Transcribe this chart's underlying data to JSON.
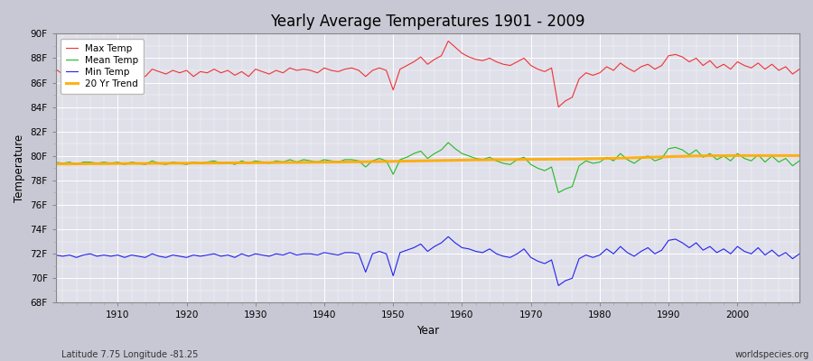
{
  "title": "Yearly Average Temperatures 1901 - 2009",
  "xlabel": "Year",
  "ylabel": "Temperature",
  "subtitle_left": "Latitude 7.75 Longitude -81.25",
  "subtitle_right": "worldspecies.org",
  "fig_bg_color": "#d0d0d8",
  "plot_bg_color": "#e4e4ec",
  "ylim": [
    68,
    90
  ],
  "yticks": [
    68,
    70,
    72,
    74,
    76,
    78,
    80,
    82,
    84,
    86,
    88,
    90
  ],
  "ytick_labels": [
    "68F",
    "70F",
    "72F",
    "74F",
    "76F",
    "78F",
    "80F",
    "82F",
    "84F",
    "86F",
    "88F",
    "90F"
  ],
  "xlim": [
    1901,
    2009
  ],
  "xticks": [
    1910,
    1920,
    1930,
    1940,
    1950,
    1960,
    1970,
    1980,
    1990,
    2000
  ],
  "line_colors": {
    "max": "#ee3333",
    "mean": "#22bb22",
    "min": "#2222ee",
    "trend": "#ffaa00"
  },
  "legend_labels": [
    "Max Temp",
    "Mean Temp",
    "Min Temp",
    "20 Yr Trend"
  ],
  "years": [
    1901,
    1902,
    1903,
    1904,
    1905,
    1906,
    1907,
    1908,
    1909,
    1910,
    1911,
    1912,
    1913,
    1914,
    1915,
    1916,
    1917,
    1918,
    1919,
    1920,
    1921,
    1922,
    1923,
    1924,
    1925,
    1926,
    1927,
    1928,
    1929,
    1930,
    1931,
    1932,
    1933,
    1934,
    1935,
    1936,
    1937,
    1938,
    1939,
    1940,
    1941,
    1942,
    1943,
    1944,
    1945,
    1946,
    1947,
    1948,
    1949,
    1950,
    1951,
    1952,
    1953,
    1954,
    1955,
    1956,
    1957,
    1958,
    1959,
    1960,
    1961,
    1962,
    1963,
    1964,
    1965,
    1966,
    1967,
    1968,
    1969,
    1970,
    1971,
    1972,
    1973,
    1974,
    1975,
    1976,
    1977,
    1978,
    1979,
    1980,
    1981,
    1982,
    1983,
    1984,
    1985,
    1986,
    1987,
    1988,
    1989,
    1990,
    1991,
    1992,
    1993,
    1994,
    1995,
    1996,
    1997,
    1998,
    1999,
    2000,
    2001,
    2002,
    2003,
    2004,
    2005,
    2006,
    2007,
    2008,
    2009
  ],
  "max_temp": [
    87.1,
    86.7,
    86.9,
    86.5,
    86.8,
    87.1,
    86.8,
    87.0,
    86.7,
    87.2,
    86.6,
    86.9,
    86.7,
    86.5,
    87.1,
    86.9,
    86.7,
    87.0,
    86.8,
    87.0,
    86.5,
    86.9,
    86.8,
    87.1,
    86.8,
    87.0,
    86.6,
    86.9,
    86.5,
    87.1,
    86.9,
    86.7,
    87.0,
    86.8,
    87.2,
    87.0,
    87.1,
    87.0,
    86.8,
    87.2,
    87.0,
    86.9,
    87.1,
    87.2,
    87.0,
    86.5,
    87.0,
    87.2,
    87.0,
    85.4,
    87.1,
    87.4,
    87.7,
    88.1,
    87.5,
    87.9,
    88.2,
    89.4,
    88.9,
    88.4,
    88.1,
    87.9,
    87.8,
    88.0,
    87.7,
    87.5,
    87.4,
    87.7,
    88.0,
    87.4,
    87.1,
    86.9,
    87.2,
    84.0,
    84.5,
    84.8,
    86.3,
    86.8,
    86.6,
    86.8,
    87.3,
    87.0,
    87.6,
    87.2,
    86.9,
    87.3,
    87.5,
    87.1,
    87.4,
    88.2,
    88.3,
    88.1,
    87.7,
    88.0,
    87.4,
    87.8,
    87.2,
    87.5,
    87.1,
    87.7,
    87.4,
    87.2,
    87.6,
    87.1,
    87.5,
    87.0,
    87.3,
    86.7,
    87.1
  ],
  "mean_temp": [
    79.5,
    79.4,
    79.5,
    79.3,
    79.5,
    79.5,
    79.4,
    79.5,
    79.4,
    79.5,
    79.3,
    79.5,
    79.4,
    79.3,
    79.6,
    79.4,
    79.3,
    79.5,
    79.4,
    79.3,
    79.5,
    79.4,
    79.5,
    79.6,
    79.4,
    79.5,
    79.3,
    79.6,
    79.4,
    79.6,
    79.5,
    79.4,
    79.6,
    79.5,
    79.7,
    79.5,
    79.7,
    79.6,
    79.5,
    79.7,
    79.6,
    79.5,
    79.7,
    79.7,
    79.6,
    79.1,
    79.6,
    79.8,
    79.6,
    78.5,
    79.7,
    79.9,
    80.2,
    80.4,
    79.8,
    80.2,
    80.5,
    81.1,
    80.6,
    80.2,
    80.0,
    79.8,
    79.7,
    79.9,
    79.6,
    79.4,
    79.3,
    79.7,
    79.9,
    79.3,
    79.0,
    78.8,
    79.1,
    77.0,
    77.3,
    77.5,
    79.2,
    79.6,
    79.4,
    79.5,
    79.9,
    79.6,
    80.2,
    79.7,
    79.4,
    79.8,
    80.0,
    79.6,
    79.8,
    80.6,
    80.7,
    80.5,
    80.1,
    80.5,
    79.9,
    80.2,
    79.7,
    80.0,
    79.6,
    80.2,
    79.8,
    79.6,
    80.1,
    79.5,
    80.0,
    79.5,
    79.8,
    79.2,
    79.6
  ],
  "min_temp": [
    71.9,
    71.8,
    71.9,
    71.7,
    71.9,
    72.0,
    71.8,
    71.9,
    71.8,
    71.9,
    71.7,
    71.9,
    71.8,
    71.7,
    72.0,
    71.8,
    71.7,
    71.9,
    71.8,
    71.7,
    71.9,
    71.8,
    71.9,
    72.0,
    71.8,
    71.9,
    71.7,
    72.0,
    71.8,
    72.0,
    71.9,
    71.8,
    72.0,
    71.9,
    72.1,
    71.9,
    72.0,
    72.0,
    71.9,
    72.1,
    72.0,
    71.9,
    72.1,
    72.1,
    72.0,
    70.5,
    72.0,
    72.2,
    72.0,
    70.2,
    72.1,
    72.3,
    72.5,
    72.8,
    72.2,
    72.6,
    72.9,
    73.4,
    72.9,
    72.5,
    72.4,
    72.2,
    72.1,
    72.4,
    72.0,
    71.8,
    71.7,
    72.0,
    72.4,
    71.7,
    71.4,
    71.2,
    71.5,
    69.4,
    69.8,
    70.0,
    71.6,
    71.9,
    71.7,
    71.9,
    72.4,
    72.0,
    72.6,
    72.1,
    71.8,
    72.2,
    72.5,
    72.0,
    72.3,
    73.1,
    73.2,
    72.9,
    72.5,
    72.9,
    72.3,
    72.6,
    72.1,
    72.4,
    72.0,
    72.6,
    72.2,
    72.0,
    72.5,
    71.9,
    72.3,
    71.8,
    72.1,
    71.6,
    72.0
  ],
  "trend": [
    79.35,
    79.35,
    79.35,
    79.36,
    79.36,
    79.37,
    79.37,
    79.37,
    79.38,
    79.38,
    79.38,
    79.39,
    79.39,
    79.39,
    79.4,
    79.4,
    79.4,
    79.41,
    79.41,
    79.41,
    79.42,
    79.42,
    79.42,
    79.43,
    79.43,
    79.43,
    79.44,
    79.44,
    79.44,
    79.45,
    79.45,
    79.46,
    79.46,
    79.47,
    79.47,
    79.47,
    79.48,
    79.48,
    79.49,
    79.49,
    79.5,
    79.5,
    79.51,
    79.52,
    79.52,
    79.53,
    79.54,
    79.55,
    79.55,
    79.56,
    79.57,
    79.58,
    79.59,
    79.6,
    79.61,
    79.62,
    79.63,
    79.64,
    79.65,
    79.66,
    79.67,
    79.68,
    79.68,
    79.69,
    79.7,
    79.7,
    79.71,
    79.71,
    79.72,
    79.72,
    79.73,
    79.73,
    79.74,
    79.74,
    79.75,
    79.75,
    79.76,
    79.77,
    79.78,
    79.79,
    79.8,
    79.82,
    79.83,
    79.84,
    79.86,
    79.87,
    79.89,
    79.91,
    79.92,
    79.94,
    79.96,
    79.97,
    79.99,
    80.0,
    80.01,
    80.02,
    80.02,
    80.02,
    80.03,
    80.03,
    80.03,
    80.03,
    80.03,
    80.03,
    80.03,
    80.03,
    80.03,
    80.03,
    80.03
  ]
}
